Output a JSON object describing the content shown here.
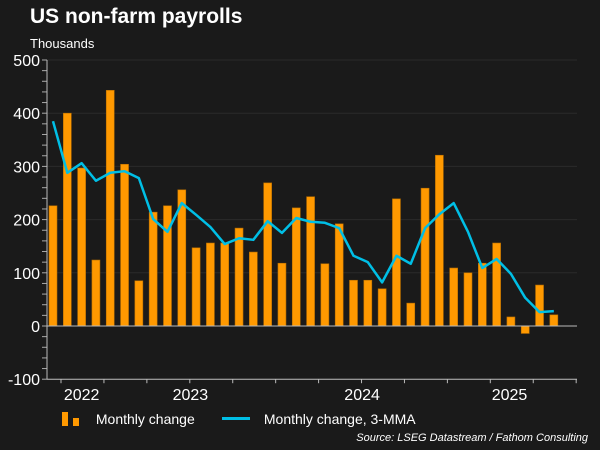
{
  "chart_data": {
    "type": "bar",
    "title": "US non-farm payrolls",
    "ylabel": "Thousands",
    "xlabel": "",
    "ylim": [
      -100,
      500
    ],
    "yticks": [
      -100,
      0,
      100,
      200,
      300,
      400,
      500
    ],
    "grid": true,
    "year_labels": [
      {
        "label": "2022",
        "at_index": 2.0
      },
      {
        "label": "2023",
        "at_index": 9.6
      },
      {
        "label": "2024",
        "at_index": 21.6
      },
      {
        "label": "2025",
        "at_index": 31.9
      }
    ],
    "series": [
      {
        "name": "Monthly change",
        "type": "bar",
        "color": "#ff9900",
        "values": [
          226,
          400,
          297,
          124,
          443,
          304,
          85,
          214,
          226,
          256,
          147,
          156,
          156,
          184,
          139,
          269,
          118,
          222,
          243,
          117,
          192,
          86,
          86,
          70,
          239,
          43,
          259,
          321,
          109,
          100,
          118,
          156,
          17,
          -14,
          77,
          21
        ]
      },
      {
        "name": "Monthly change, 3-MMA",
        "type": "line",
        "color": "#00bfe6",
        "values": [
          385,
          288,
          306,
          273,
          288,
          291,
          278,
          201,
          177,
          231,
          209,
          186,
          154,
          165,
          162,
          197,
          175,
          203,
          196,
          194,
          184,
          132,
          120,
          82,
          132,
          117,
          184,
          210,
          231,
          177,
          109,
          126,
          98,
          53,
          26,
          28
        ]
      }
    ],
    "legend_position": "bottom-left",
    "source": "Source: LSEG Datastream / Fathom Consulting"
  }
}
